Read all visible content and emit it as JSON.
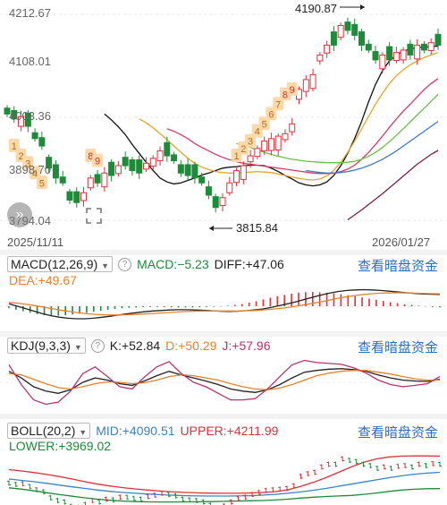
{
  "main": {
    "price_labels": [
      "4212.67",
      "4108.01",
      "4003.36",
      "3898.70",
      "3794.04"
    ],
    "date_left": "2025/11/11",
    "date_right": "2026/01/27",
    "high_annot": "4190.87",
    "low_annot": "3815.84"
  },
  "macd": {
    "name": "MACD(12,26,9)",
    "macd": "MACD:−5.23",
    "diff": "DIFF:+47.06",
    "dea": "DEA:+49.67",
    "link": "查看暗盘资金"
  },
  "kdj": {
    "name": "KDJ(9,3,3)",
    "k": "K:+52.84",
    "d": "D:+50.29",
    "j": "J:+57.96",
    "link": "查看暗盘资金"
  },
  "boll": {
    "name": "BOLL(20,2)",
    "mid": "MID:+4090.51",
    "upper": "UPPER:+4211.99",
    "lower": "LOWER:+3969.02",
    "link": "查看暗盘资金"
  },
  "icons": {
    "zoom": "expand-arrows-icon",
    "fullscreen": "fullscreen-corners-icon",
    "help": "question-mark-icon",
    "dropdown": "triangle-down-icon"
  },
  "colors": {
    "up": "#e0303a",
    "down": "#1e8b3a",
    "diff": "#222222",
    "dea": "#e8812b",
    "k": "#222222",
    "d": "#e8812b",
    "j": "#b8336a",
    "mid": "#3b82c4",
    "upper": "#e0303a",
    "lower": "#1e8b3a"
  },
  "chart_data": [
    {
      "type": "candlestick",
      "x_start": "2025/11/11",
      "x_end": "2026/01/27",
      "ylim": [
        3794.04,
        4212.67
      ],
      "y_ticks": [
        4212.67,
        4108.01,
        4003.36,
        3898.7,
        3794.04
      ],
      "close": [
        4010,
        4000,
        4005,
        3985,
        3960,
        3945,
        3900,
        3880,
        3870,
        3835,
        3830,
        3850,
        3880,
        3870,
        3890,
        3885,
        3905,
        3905,
        3895,
        3890,
        3910,
        3920,
        3935,
        3925,
        3915,
        3890,
        3885,
        3880,
        3870,
        3845,
        3820,
        3840,
        3870,
        3895,
        3905,
        3925,
        3940,
        3955,
        3960,
        3965,
        3970,
        3990,
        4060,
        4080,
        4090,
        4130,
        4150,
        4150,
        4190,
        4180,
        4170,
        4150,
        4140,
        4120,
        4130,
        4120,
        4135,
        4140,
        4130,
        4150,
        4140,
        4155,
        4150
      ],
      "bull": [
        false,
        false,
        true,
        false,
        false,
        false,
        false,
        false,
        false,
        false,
        false,
        true,
        true,
        false,
        true,
        false,
        true,
        false,
        false,
        false,
        true,
        true,
        true,
        false,
        false,
        false,
        false,
        false,
        false,
        false,
        false,
        true,
        true,
        true,
        true,
        true,
        true,
        true,
        true,
        true,
        true,
        true,
        true,
        true,
        true,
        true,
        true,
        false,
        true,
        false,
        false,
        false,
        false,
        false,
        true,
        false,
        true,
        true,
        false,
        true,
        false,
        true,
        false
      ],
      "high_marker": 4190.87,
      "low_marker": 3815.84,
      "td_labels": [
        "1",
        "2",
        "3",
        "4",
        "5",
        "8",
        "9",
        "1",
        "2",
        "3",
        "4",
        "5",
        "6",
        "7",
        "8",
        "9"
      ],
      "moving_averages": [
        {
          "color": "#111111",
          "values": [
            4010,
            3998,
            3984,
            3968,
            3948,
            3930,
            3912,
            3895,
            3880,
            3872,
            3868,
            3870,
            3875,
            3880,
            3886,
            3890,
            3895,
            3900,
            3902,
            3903,
            3905,
            3906,
            3906,
            3905,
            3900,
            3893,
            3885,
            3878,
            3870,
            3866,
            3864,
            3866,
            3872,
            3885,
            3905,
            3930,
            3960,
            3995,
            4035,
            4070,
            4098,
            4118,
            4130,
            4138,
            4142,
            4145,
            4146,
            4147,
            4148
          ]
        },
        {
          "color": "#e8a526",
          "values": [
            4000,
            3992,
            3982,
            3970,
            3958,
            3945,
            3932,
            3920,
            3910,
            3902,
            3897,
            3893,
            3891,
            3890,
            3890,
            3891,
            3892,
            3893,
            3892,
            3891,
            3888,
            3885,
            3882,
            3879,
            3877,
            3876,
            3878,
            3884,
            3896,
            3912,
            3932,
            3955,
            3980,
            4005,
            4030,
            4052,
            4072,
            4088,
            4100,
            4110,
            4118,
            4125,
            4130,
            4135
          ]
        },
        {
          "color": "#d43c6a",
          "values": [
            3980,
            3975,
            3968,
            3960,
            3950,
            3942,
            3935,
            3928,
            3922,
            3917,
            3913,
            3910,
            3908,
            3906,
            3904,
            3902,
            3900,
            3898,
            3896,
            3894,
            3892,
            3890,
            3889,
            3889,
            3890,
            3893,
            3898,
            3906,
            3918,
            3932,
            3948,
            3965,
            3983,
            4000,
            4016,
            4030,
            4045,
            4060,
            4072,
            4082
          ]
        },
        {
          "color": "#6bbf4a",
          "values": [
            3950,
            3946,
            3942,
            3937,
            3932,
            3928,
            3924,
            3921,
            3918,
            3916,
            3914,
            3913,
            3912,
            3911,
            3911,
            3911,
            3912,
            3914,
            3918,
            3924,
            3932,
            3942,
            3954,
            3967,
            3980,
            3994,
            4008,
            4022,
            4036,
            4050
          ]
        },
        {
          "color": "#3a78c2",
          "values": [
            3895,
            3893,
            3891,
            3890,
            3890,
            3891,
            3893,
            3896,
            3900,
            3905,
            3911,
            3918,
            3926,
            3935,
            3945,
            3955,
            3965,
            3975,
            3985,
            3995
          ]
        },
        {
          "color": "#7a1e4a",
          "values": [
            3795,
            3805,
            3815,
            3826,
            3837,
            3848,
            3860,
            3872,
            3884,
            3896,
            3908,
            3918,
            3928,
            3936
          ]
        }
      ]
    },
    {
      "type": "bar+line",
      "title": "MACD(12,26,9)",
      "macd_values": [
        -8,
        -14,
        -20,
        -26,
        -32,
        -36,
        -38,
        -38,
        -36,
        -33,
        -30,
        -26,
        -22,
        -18,
        -14,
        -11,
        -8,
        -6,
        -5,
        -4,
        -3,
        -3,
        -4,
        -4,
        -5,
        -5,
        -5,
        -4,
        -3,
        -2,
        -1,
        2,
        5,
        9,
        14,
        20,
        27,
        34,
        40,
        45,
        50,
        54,
        56,
        57,
        56,
        54,
        51,
        48,
        44,
        40,
        35,
        30,
        26,
        21,
        16,
        12,
        8,
        5,
        2,
        -1,
        -3,
        -5
      ],
      "diff": [
        10,
        0,
        -10,
        -20,
        -30,
        -38,
        -44,
        -48,
        -50,
        -50,
        -48,
        -44,
        -40,
        -35,
        -30,
        -26,
        -22,
        -19,
        -17,
        -15,
        -14,
        -14,
        -15,
        -16,
        -18,
        -20,
        -21,
        -20,
        -18,
        -15,
        -11,
        -5,
        2,
        10,
        18,
        27,
        36,
        45,
        53,
        59,
        63,
        65,
        66,
        65,
        63,
        60,
        57,
        54,
        51,
        49,
        48,
        47
      ],
      "dea": [
        15,
        12,
        8,
        3,
        -3,
        -9,
        -15,
        -20,
        -25,
        -29,
        -32,
        -34,
        -35,
        -35,
        -34,
        -33,
        -31,
        -29,
        -27,
        -25,
        -23,
        -21,
        -20,
        -19,
        -19,
        -19,
        -19,
        -19,
        -18,
        -17,
        -15,
        -12,
        -9,
        -5,
        0,
        6,
        12,
        18,
        25,
        32,
        38,
        43,
        47,
        50,
        52,
        53,
        54,
        53,
        52,
        51,
        50,
        49.67
      ]
    },
    {
      "type": "line",
      "title": "KDJ(9,3,3)",
      "k": [
        70,
        55,
        35,
        25,
        20,
        28,
        45,
        55,
        50,
        42,
        38,
        48,
        60,
        70,
        62,
        55,
        48,
        40,
        30,
        25,
        22,
        28,
        40,
        55,
        68,
        72,
        75,
        76,
        74,
        70,
        62,
        55,
        50,
        48,
        47,
        52
      ],
      "d": [
        65,
        62,
        52,
        42,
        33,
        30,
        35,
        42,
        46,
        45,
        42,
        44,
        50,
        58,
        62,
        60,
        55,
        50,
        42,
        35,
        30,
        28,
        32,
        40,
        50,
        60,
        66,
        70,
        72,
        72,
        68,
        64,
        58,
        53,
        50,
        50
      ],
      "j": [
        85,
        40,
        5,
        -5,
        0,
        25,
        65,
        80,
        58,
        35,
        30,
        57,
        80,
        92,
        65,
        45,
        35,
        20,
        5,
        5,
        8,
        30,
        58,
        85,
        95,
        90,
        88,
        86,
        78,
        66,
        50,
        40,
        35,
        38,
        42,
        58
      ]
    },
    {
      "type": "line",
      "title": "BOLL(20,2)",
      "mid": [
        4040,
        4030,
        4020,
        4008,
        3995,
        3982,
        3970,
        3958,
        3948,
        3940,
        3934,
        3928,
        3923,
        3919,
        3916,
        3914,
        3913,
        3913,
        3914,
        3916,
        3920,
        3926,
        3934,
        3944,
        3956,
        3970,
        3986,
        4002,
        4018,
        4034,
        4050,
        4064,
        4076,
        4084,
        4090
      ],
      "upper": [
        4110,
        4100,
        4088,
        4074,
        4058,
        4040,
        4020,
        4002,
        3988,
        3976,
        3966,
        3958,
        3950,
        3944,
        3940,
        3937,
        3935,
        3934,
        3934,
        3936,
        3940,
        3946,
        3960,
        3985,
        4015,
        4050,
        4090,
        4130,
        4165,
        4190,
        4205,
        4211,
        4213,
        4212,
        4211
      ],
      "lower": [
        3975,
        3965,
        3952,
        3938,
        3924,
        3912,
        3900,
        3890,
        3882,
        3876,
        3872,
        3870,
        3869,
        3869,
        3870,
        3871,
        3872,
        3874,
        3876,
        3878,
        3880,
        3884,
        3890,
        3898,
        3905,
        3910,
        3914,
        3918,
        3926,
        3936,
        3948,
        3958,
        3964,
        3968,
        3969
      ]
    }
  ]
}
